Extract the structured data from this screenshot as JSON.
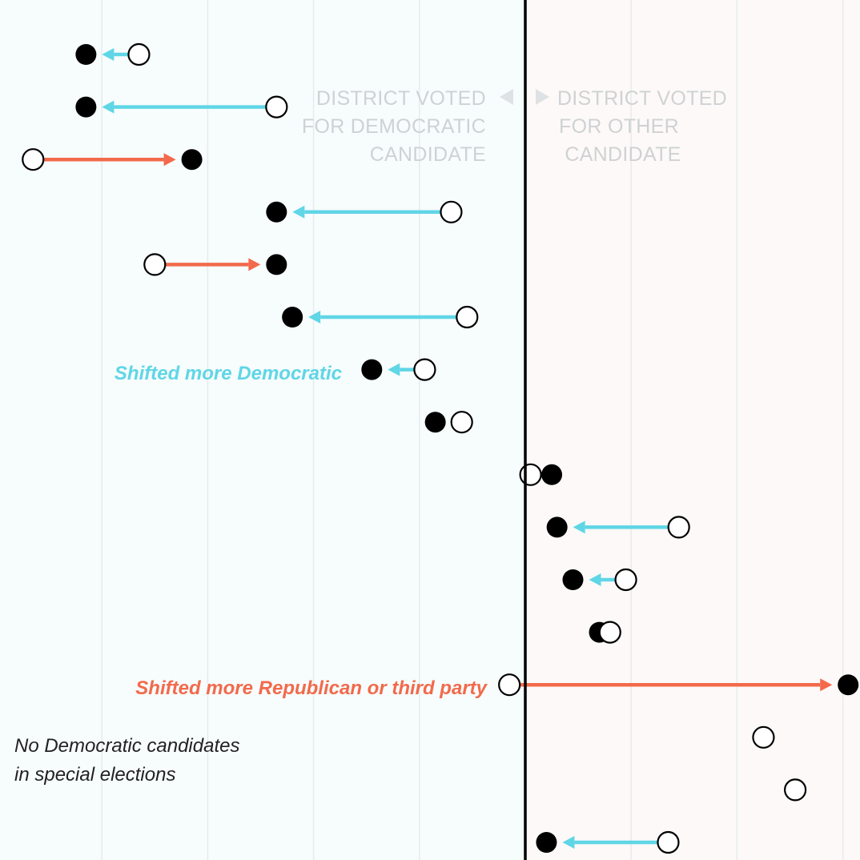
{
  "colors": {
    "dem_shift": "#5fd6e6",
    "rep_shift": "#f26a4b",
    "dem_bg": "#f7fcfd",
    "other_bg": "#fdf9f8",
    "gridline": "#e8ebec",
    "divider": "#000000",
    "region_label": "#cfd2d4"
  },
  "labels": {
    "dem_region": [
      "DISTRICT VOTED",
      "FOR DEMOCRATIC",
      "CANDIDATE"
    ],
    "other_region": [
      "DISTRICT VOTED",
      "FOR OTHER",
      "CANDIDATE"
    ],
    "shifted_dem": "Shifted more Democratic",
    "shifted_rep": "Shifted more Republican or third party",
    "no_dem_note": [
      "No Democratic candidates",
      "in special elections"
    ]
  },
  "chart_data": {
    "type": "dot-arrow",
    "xlim": [
      -1,
      1
    ],
    "divider_x": 0,
    "gridlines_x": [
      -0.8,
      -0.6,
      -0.4,
      -0.2,
      0.2,
      0.4,
      0.6,
      0.8
    ],
    "rows": [
      {
        "from": -0.73,
        "to": -0.83,
        "direction": "dem"
      },
      {
        "from": -0.47,
        "to": -0.83,
        "direction": "dem"
      },
      {
        "from": -0.93,
        "to": -0.63,
        "direction": "rep"
      },
      {
        "from": -0.14,
        "to": -0.47,
        "direction": "dem"
      },
      {
        "from": -0.7,
        "to": -0.47,
        "direction": "rep"
      },
      {
        "from": -0.11,
        "to": -0.44,
        "direction": "dem"
      },
      {
        "from": -0.19,
        "to": -0.29,
        "direction": "dem"
      },
      {
        "from": -0.12,
        "to": -0.17,
        "direction": "dem"
      },
      {
        "from": 0.01,
        "to": 0.05,
        "direction": "rep"
      },
      {
        "from": 0.29,
        "to": 0.06,
        "direction": "dem"
      },
      {
        "from": 0.19,
        "to": 0.09,
        "direction": "dem"
      },
      {
        "from": 0.16,
        "to": 0.14,
        "direction": "dem"
      },
      {
        "from": -0.03,
        "to": 0.61,
        "direction": "rep"
      },
      {
        "from": 0.45,
        "to": null,
        "direction": "none"
      },
      {
        "from": 0.51,
        "to": null,
        "direction": "none"
      },
      {
        "from": 0.27,
        "to": 0.04,
        "direction": "dem"
      }
    ]
  }
}
